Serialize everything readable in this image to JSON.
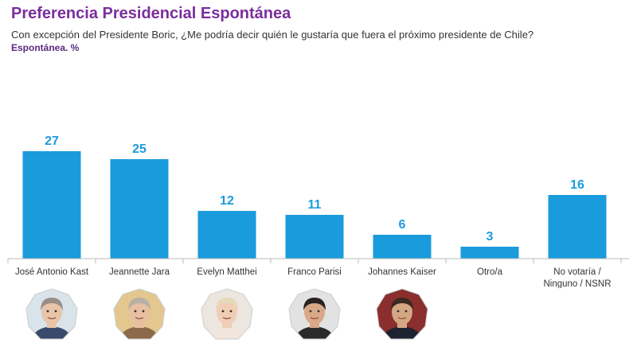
{
  "header": {
    "title": "Preferencia Presidencial Espontánea",
    "subtitle": "Con excepción del Presidente Boric, ¿Me podría decir quién le gustaría que fuera el próximo presidente de Chile?",
    "unit": "Espontánea. %"
  },
  "colors": {
    "title": "#7a2e9c",
    "bar": "#1a9bdc",
    "value_label": "#1a9bdc",
    "axis": "#bbbbbb"
  },
  "chart_data": {
    "type": "bar",
    "title": "Preferencia Presidencial Espontánea",
    "categories": [
      [
        "José Antonio Kast"
      ],
      [
        "Jeannette Jara"
      ],
      [
        "Evelyn Matthei"
      ],
      [
        "Franco Parisi"
      ],
      [
        "Johannes Kaiser"
      ],
      [
        "Otro/a"
      ],
      [
        "No votaría /",
        "Ninguno / NSNR"
      ]
    ],
    "values": [
      27,
      25,
      12,
      11,
      6,
      3,
      16
    ],
    "ylim": [
      0,
      30
    ],
    "grid": false,
    "legend": "none"
  },
  "avatars": [
    {
      "name": "José Antonio Kast",
      "icon": "portrait-kast-icon",
      "skin": "#e8c4a8",
      "hair": "#9a8f88",
      "clothing": "#3a4a6a",
      "bg": "#d9e3ea"
    },
    {
      "name": "Jeannette Jara",
      "icon": "portrait-jara-icon",
      "skin": "#e6c0a0",
      "hair": "#b8b0a6",
      "clothing": "#8a6a4a",
      "bg": "#e4c78e"
    },
    {
      "name": "Evelyn Matthei",
      "icon": "portrait-matthei-icon",
      "skin": "#f0cdb4",
      "hair": "#e6d8b8",
      "clothing": "#f2e6dc",
      "bg": "#ece6e0"
    },
    {
      "name": "Franco Parisi",
      "icon": "portrait-parisi-icon",
      "skin": "#d8a888",
      "hair": "#2a2222",
      "clothing": "#2a2a2a",
      "bg": "#e2e2e2"
    },
    {
      "name": "Johannes Kaiser",
      "icon": "portrait-kaiser-icon",
      "skin": "#d4a684",
      "hair": "#3a2a20",
      "clothing": "#1e2230",
      "bg": "#8a2e2e"
    }
  ]
}
